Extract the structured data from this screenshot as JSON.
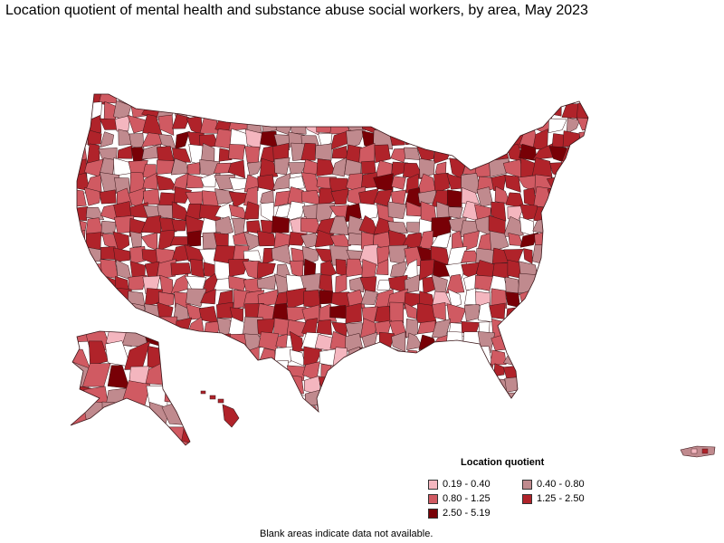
{
  "title": "Location quotient of mental health and substance abuse social workers, by area, May 2023",
  "legend": {
    "title": "Location quotient",
    "items": [
      {
        "label": "0.19 - 0.40",
        "color": "#f4b6bf"
      },
      {
        "label": "0.40 - 0.80",
        "color": "#c08a8e"
      },
      {
        "label": "0.80 - 1.25",
        "color": "#d05a62"
      },
      {
        "label": "1.25 - 2.50",
        "color": "#b0232a"
      },
      {
        "label": "2.50 - 5.19",
        "color": "#780006"
      }
    ]
  },
  "footnote": "Blank areas indicate data not available.",
  "colors": {
    "blank": "#ffffff",
    "border": "#3a1518"
  }
}
